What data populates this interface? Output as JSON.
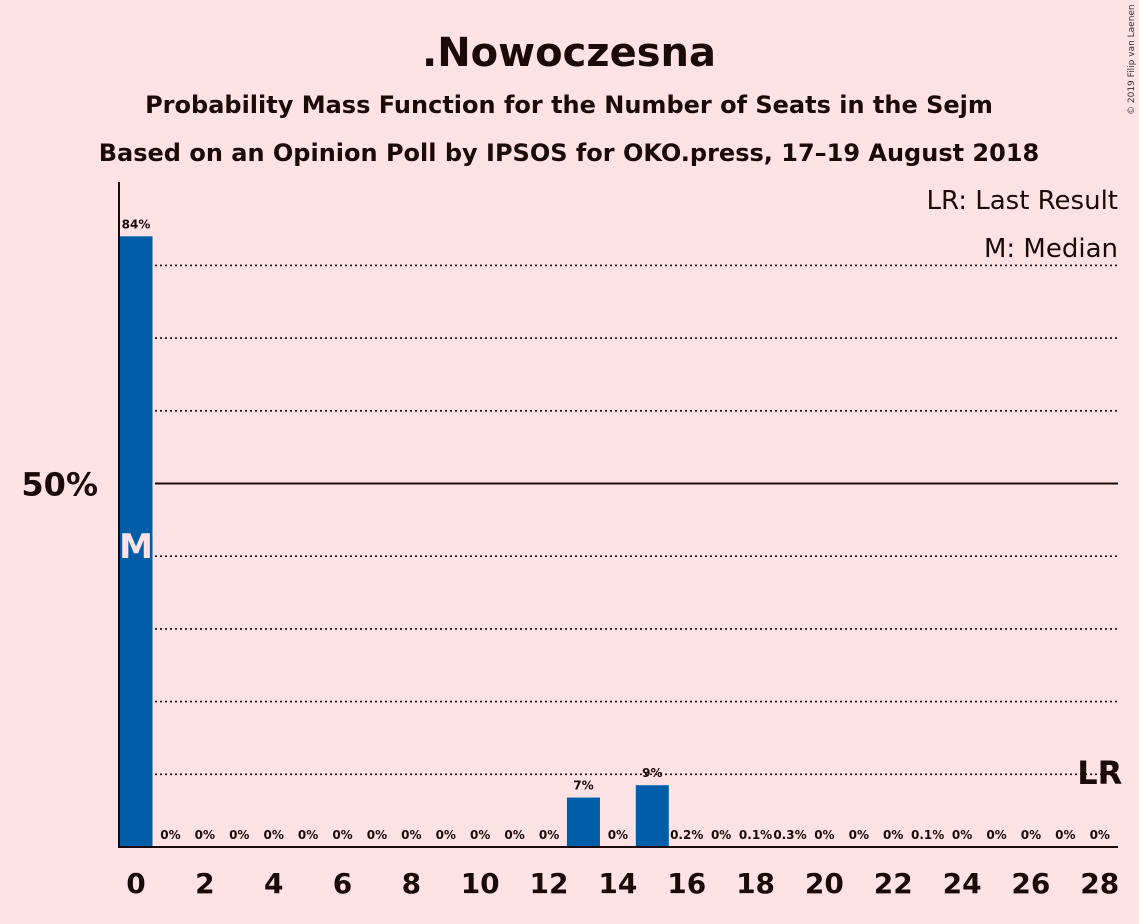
{
  "colors": {
    "background": "#FFE2E5",
    "bar": "#005DA8",
    "text": "#1a0a0a"
  },
  "chart_data": {
    "type": "bar",
    "title": ".Nowoczesna",
    "subtitle": "Probability Mass Function for the Number of Seats in the Sejm",
    "subtitle2": "Based on an Opinion Poll by IPSOS for OKO.press, 17–19 August 2018",
    "copyright": "© 2019 Filip van Laenen",
    "legend": [
      "LR: Last Result",
      "M: Median"
    ],
    "xlabel": "",
    "ylabel": "",
    "ylim": [
      0,
      85
    ],
    "y_tick_label": "50%",
    "y_tick_value": 50,
    "gridlines": [
      10,
      20,
      30,
      40,
      60,
      70,
      80
    ],
    "x": [
      0,
      1,
      2,
      3,
      4,
      5,
      6,
      7,
      8,
      9,
      10,
      11,
      12,
      13,
      14,
      15,
      16,
      17,
      18,
      19,
      20,
      21,
      22,
      23,
      24,
      25,
      26,
      27,
      28
    ],
    "x_tick_labels": [
      "0",
      "2",
      "4",
      "6",
      "8",
      "10",
      "12",
      "14",
      "16",
      "18",
      "20",
      "22",
      "24",
      "26",
      "28"
    ],
    "values": [
      84,
      0,
      0,
      0,
      0,
      0,
      0,
      0,
      0,
      0,
      0,
      0,
      0,
      6.8,
      0,
      8.5,
      0.2,
      0,
      0.1,
      0.3,
      0,
      0,
      0,
      0.1,
      0,
      0,
      0,
      0,
      0
    ],
    "data_labels": [
      "84%",
      "0%",
      "0%",
      "0%",
      "0%",
      "0%",
      "0%",
      "0%",
      "0%",
      "0%",
      "0%",
      "0%",
      "0%",
      "7%",
      "0%",
      "9%",
      "0.2%",
      "0%",
      "0.1%",
      "0.3%",
      "0%",
      "0%",
      "0%",
      "0.1%",
      "0%",
      "0%",
      "0%",
      "0%",
      "0%"
    ],
    "median_seat": 0,
    "median_label": "M",
    "last_result_seat": 28,
    "last_result_label": "LR"
  }
}
